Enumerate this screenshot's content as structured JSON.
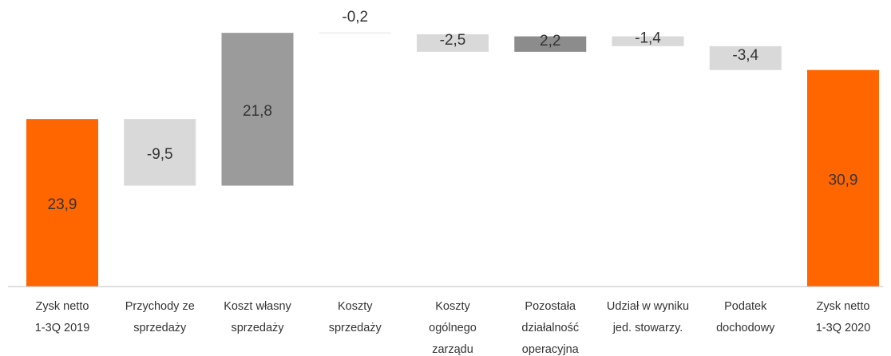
{
  "chart_data": {
    "type": "bar",
    "subtype": "waterfall",
    "categories": [
      [
        "Zysk netto",
        "1-3Q 2019"
      ],
      [
        "Przychody ze",
        "sprzedaży"
      ],
      [
        "Koszt własny",
        "sprzedaży"
      ],
      [
        "Koszty",
        "sprzedaży"
      ],
      [
        "Koszty",
        "ogólnego",
        "zarządu"
      ],
      [
        "Pozostała",
        "działalność",
        "operacyjna"
      ],
      [
        "Udział w wyniku",
        "jed. stowarzy."
      ],
      [
        "Podatek",
        "dochodowy"
      ],
      [
        "Zysk netto",
        "1-3Q 2020"
      ]
    ],
    "values": [
      23.9,
      -9.5,
      21.8,
      -0.2,
      -2.5,
      2.2,
      -1.4,
      -3.4,
      30.9
    ],
    "value_labels": [
      "23,9",
      "-9,5",
      "21,8",
      "-0,2",
      "-2,5",
      "2,2",
      "-1,4",
      "-3,4",
      "30,9"
    ],
    "bar_kinds": [
      "total",
      "delta",
      "delta",
      "delta",
      "delta",
      "delta",
      "delta",
      "delta",
      "total"
    ],
    "colors": {
      "total": "#ff6600",
      "increase": "#9b9b9b",
      "decrease": "#d9d9d9",
      "small_increase": "#8c8c8c",
      "axis": "#bfbfbf",
      "text": "#333333"
    },
    "title": "",
    "xlabel": "",
    "ylabel": "",
    "ylim": [
      0,
      36
    ],
    "grid": false,
    "legend": "none"
  }
}
